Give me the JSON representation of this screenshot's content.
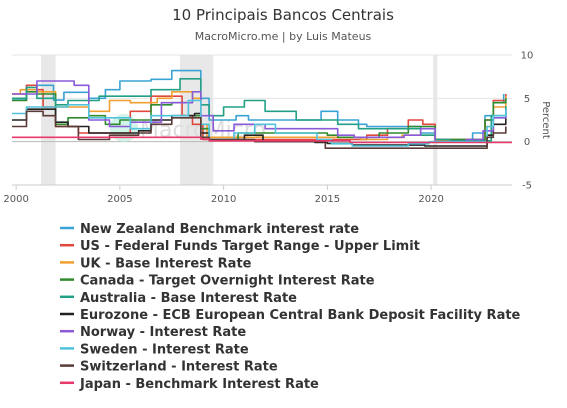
{
  "chart_data": {
    "type": "line",
    "title": "10 Principais Bancos Centrais",
    "subtitle": "MacroMicro.me | by Luis Mateus",
    "ylabel": "Percent",
    "watermark": "MacroMicro",
    "xlim": [
      1999.8,
      2023.9
    ],
    "ylim": [
      -5,
      10
    ],
    "x_ticks": [
      "2000",
      "2005",
      "2010",
      "2015",
      "2020"
    ],
    "y_ticks": [
      "10",
      "5",
      "0",
      "-5"
    ],
    "recessions": [
      [
        2001.2,
        2001.9
      ],
      [
        2007.9,
        2009.5
      ],
      [
        2020.1,
        2020.3
      ]
    ],
    "grid": true,
    "legend_position": "bottom",
    "series": [
      {
        "name": "New Zealand Benchmark interest rate",
        "color": "#3aa3d6",
        "points": [
          [
            1999.8,
            4.8
          ],
          [
            2000.5,
            6.5
          ],
          [
            2001.2,
            6.5
          ],
          [
            2001.8,
            4.8
          ],
          [
            2002.3,
            5.7
          ],
          [
            2003.5,
            5.0
          ],
          [
            2004.3,
            6.0
          ],
          [
            2005.0,
            7.0
          ],
          [
            2006.5,
            7.2
          ],
          [
            2007.5,
            8.2
          ],
          [
            2008.5,
            8.2
          ],
          [
            2008.9,
            5.0
          ],
          [
            2009.3,
            2.5
          ],
          [
            2010.0,
            2.5
          ],
          [
            2010.6,
            3.0
          ],
          [
            2011.2,
            2.5
          ],
          [
            2014.0,
            2.5
          ],
          [
            2014.7,
            3.5
          ],
          [
            2015.5,
            2.5
          ],
          [
            2016.5,
            2.0
          ],
          [
            2016.9,
            1.75
          ],
          [
            2019.5,
            1.0
          ],
          [
            2020.2,
            0.25
          ],
          [
            2021.7,
            0.25
          ],
          [
            2022.0,
            1.0
          ],
          [
            2022.6,
            3.0
          ],
          [
            2023.0,
            4.5
          ],
          [
            2023.5,
            5.5
          ]
        ]
      },
      {
        "name": "US - Federal Funds Target Range - Upper Limit",
        "color": "#e0473d",
        "points": [
          [
            1999.8,
            5.5
          ],
          [
            2000.5,
            6.5
          ],
          [
            2001.0,
            6.0
          ],
          [
            2001.3,
            4.0
          ],
          [
            2001.9,
            1.75
          ],
          [
            2003.0,
            1.0
          ],
          [
            2004.5,
            1.0
          ],
          [
            2005.5,
            3.5
          ],
          [
            2006.5,
            5.25
          ],
          [
            2007.6,
            5.25
          ],
          [
            2008.0,
            3.0
          ],
          [
            2008.5,
            2.0
          ],
          [
            2009.0,
            0.25
          ],
          [
            2015.9,
            0.25
          ],
          [
            2016.9,
            0.75
          ],
          [
            2017.9,
            1.5
          ],
          [
            2018.9,
            2.5
          ],
          [
            2019.6,
            2.0
          ],
          [
            2020.2,
            0.25
          ],
          [
            2022.1,
            0.25
          ],
          [
            2022.6,
            2.5
          ],
          [
            2023.0,
            4.75
          ],
          [
            2023.6,
            5.5
          ]
        ]
      },
      {
        "name": "UK - Base Interest Rate",
        "color": "#f0a030",
        "points": [
          [
            1999.8,
            5.5
          ],
          [
            2000.2,
            6.0
          ],
          [
            2001.0,
            5.75
          ],
          [
            2001.9,
            4.0
          ],
          [
            2003.5,
            3.5
          ],
          [
            2004.5,
            4.75
          ],
          [
            2005.5,
            4.5
          ],
          [
            2006.8,
            5.0
          ],
          [
            2007.5,
            5.75
          ],
          [
            2008.5,
            5.0
          ],
          [
            2008.9,
            2.0
          ],
          [
            2009.2,
            0.5
          ],
          [
            2016.6,
            0.25
          ],
          [
            2017.9,
            0.5
          ],
          [
            2018.6,
            0.75
          ],
          [
            2020.2,
            0.1
          ],
          [
            2021.9,
            0.25
          ],
          [
            2022.6,
            1.75
          ],
          [
            2023.0,
            4.0
          ],
          [
            2023.6,
            5.25
          ]
        ]
      },
      {
        "name": "Canada - Target Overnight Interest Rate",
        "color": "#2e8b2e",
        "points": [
          [
            1999.8,
            4.75
          ],
          [
            2000.5,
            5.75
          ],
          [
            2001.0,
            5.5
          ],
          [
            2001.9,
            2.0
          ],
          [
            2002.5,
            2.75
          ],
          [
            2003.5,
            3.0
          ],
          [
            2004.3,
            2.0
          ],
          [
            2005.0,
            2.5
          ],
          [
            2006.5,
            4.25
          ],
          [
            2007.5,
            4.5
          ],
          [
            2008.3,
            3.0
          ],
          [
            2008.9,
            1.5
          ],
          [
            2009.3,
            0.25
          ],
          [
            2010.3,
            0.25
          ],
          [
            2010.7,
            1.0
          ],
          [
            2015.0,
            0.75
          ],
          [
            2015.5,
            0.5
          ],
          [
            2017.5,
            1.0
          ],
          [
            2018.9,
            1.75
          ],
          [
            2020.2,
            0.25
          ],
          [
            2022.1,
            0.25
          ],
          [
            2022.6,
            2.5
          ],
          [
            2023.0,
            4.5
          ],
          [
            2023.6,
            5.0
          ]
        ]
      },
      {
        "name": "Australia - Base Interest Rate",
        "color": "#21a086",
        "points": [
          [
            1999.8,
            5.0
          ],
          [
            2000.5,
            6.25
          ],
          [
            2001.0,
            5.0
          ],
          [
            2001.9,
            4.25
          ],
          [
            2002.5,
            4.75
          ],
          [
            2004.0,
            5.25
          ],
          [
            2006.5,
            6.0
          ],
          [
            2007.9,
            7.25
          ],
          [
            2008.5,
            7.25
          ],
          [
            2008.9,
            4.25
          ],
          [
            2009.3,
            3.0
          ],
          [
            2010.0,
            4.0
          ],
          [
            2011.0,
            4.75
          ],
          [
            2012.0,
            3.5
          ],
          [
            2013.5,
            2.5
          ],
          [
            2015.5,
            2.0
          ],
          [
            2016.5,
            1.5
          ],
          [
            2019.5,
            0.75
          ],
          [
            2020.2,
            0.25
          ],
          [
            2020.9,
            0.1
          ],
          [
            2022.3,
            0.1
          ],
          [
            2022.9,
            3.0
          ],
          [
            2023.6,
            4.1
          ]
        ]
      },
      {
        "name": "Eurozone - ECB European Central Bank Deposit Facility Rate",
        "color": "#222222",
        "points": [
          [
            1999.8,
            2.5
          ],
          [
            2000.5,
            3.75
          ],
          [
            2001.0,
            3.75
          ],
          [
            2001.9,
            2.25
          ],
          [
            2002.5,
            1.75
          ],
          [
            2003.5,
            1.0
          ],
          [
            2005.9,
            1.25
          ],
          [
            2006.5,
            2.5
          ],
          [
            2007.5,
            3.0
          ],
          [
            2008.6,
            3.25
          ],
          [
            2008.9,
            1.0
          ],
          [
            2009.3,
            0.25
          ],
          [
            2011.0,
            0.75
          ],
          [
            2011.9,
            0.0
          ],
          [
            2014.4,
            -0.1
          ],
          [
            2015.0,
            -0.2
          ],
          [
            2016.2,
            -0.4
          ],
          [
            2019.7,
            -0.5
          ],
          [
            2022.5,
            -0.5
          ],
          [
            2022.7,
            0.75
          ],
          [
            2023.0,
            2.0
          ],
          [
            2023.6,
            3.75
          ]
        ]
      },
      {
        "name": "Norway - Interest Rate",
        "color": "#8a5ad8",
        "points": [
          [
            1999.8,
            5.5
          ],
          [
            2001.0,
            7.0
          ],
          [
            2002.8,
            6.5
          ],
          [
            2003.5,
            2.5
          ],
          [
            2004.5,
            1.75
          ],
          [
            2005.5,
            2.25
          ],
          [
            2007.0,
            4.5
          ],
          [
            2008.5,
            5.75
          ],
          [
            2008.9,
            3.0
          ],
          [
            2009.5,
            1.25
          ],
          [
            2010.5,
            2.0
          ],
          [
            2012.0,
            1.5
          ],
          [
            2015.5,
            0.75
          ],
          [
            2016.3,
            0.5
          ],
          [
            2018.7,
            0.75
          ],
          [
            2019.5,
            1.5
          ],
          [
            2020.2,
            0.0
          ],
          [
            2021.7,
            0.25
          ],
          [
            2022.5,
            1.25
          ],
          [
            2023.0,
            2.75
          ],
          [
            2023.6,
            3.75
          ]
        ]
      },
      {
        "name": "Sweden - Interest Rate",
        "color": "#4fc3dc",
        "points": [
          [
            1999.8,
            3.25
          ],
          [
            2000.5,
            4.0
          ],
          [
            2002.5,
            4.25
          ],
          [
            2003.5,
            2.75
          ],
          [
            2005.5,
            1.5
          ],
          [
            2006.5,
            3.0
          ],
          [
            2008.3,
            4.75
          ],
          [
            2008.9,
            2.0
          ],
          [
            2009.3,
            0.25
          ],
          [
            2010.5,
            1.0
          ],
          [
            2011.5,
            2.0
          ],
          [
            2012.5,
            1.0
          ],
          [
            2014.5,
            0.25
          ],
          [
            2015.2,
            -0.25
          ],
          [
            2016.2,
            -0.5
          ],
          [
            2018.9,
            -0.25
          ],
          [
            2019.9,
            0.0
          ],
          [
            2022.3,
            0.0
          ],
          [
            2022.7,
            1.75
          ],
          [
            2023.0,
            3.0
          ],
          [
            2023.6,
            3.75
          ]
        ]
      },
      {
        "name": "Switzerland - Interest Rate",
        "color": "#5b3a38",
        "points": [
          [
            1999.8,
            1.75
          ],
          [
            2000.5,
            3.5
          ],
          [
            2001.3,
            3.0
          ],
          [
            2001.9,
            1.75
          ],
          [
            2003.0,
            0.25
          ],
          [
            2004.5,
            0.75
          ],
          [
            2005.9,
            1.0
          ],
          [
            2006.5,
            2.0
          ],
          [
            2007.5,
            2.75
          ],
          [
            2008.9,
            0.5
          ],
          [
            2009.3,
            0.25
          ],
          [
            2011.5,
            0.0
          ],
          [
            2014.9,
            -0.75
          ],
          [
            2022.4,
            -0.75
          ],
          [
            2022.7,
            0.5
          ],
          [
            2023.0,
            1.0
          ],
          [
            2023.6,
            1.75
          ]
        ]
      },
      {
        "name": "Japan - Benchmark Interest Rate",
        "color": "#e8386a",
        "points": [
          [
            1999.8,
            0.5
          ],
          [
            2008.0,
            0.5
          ],
          [
            2008.9,
            0.3
          ],
          [
            2009.3,
            0.1
          ],
          [
            2016.1,
            -0.1
          ],
          [
            2023.9,
            -0.1
          ]
        ]
      }
    ]
  }
}
